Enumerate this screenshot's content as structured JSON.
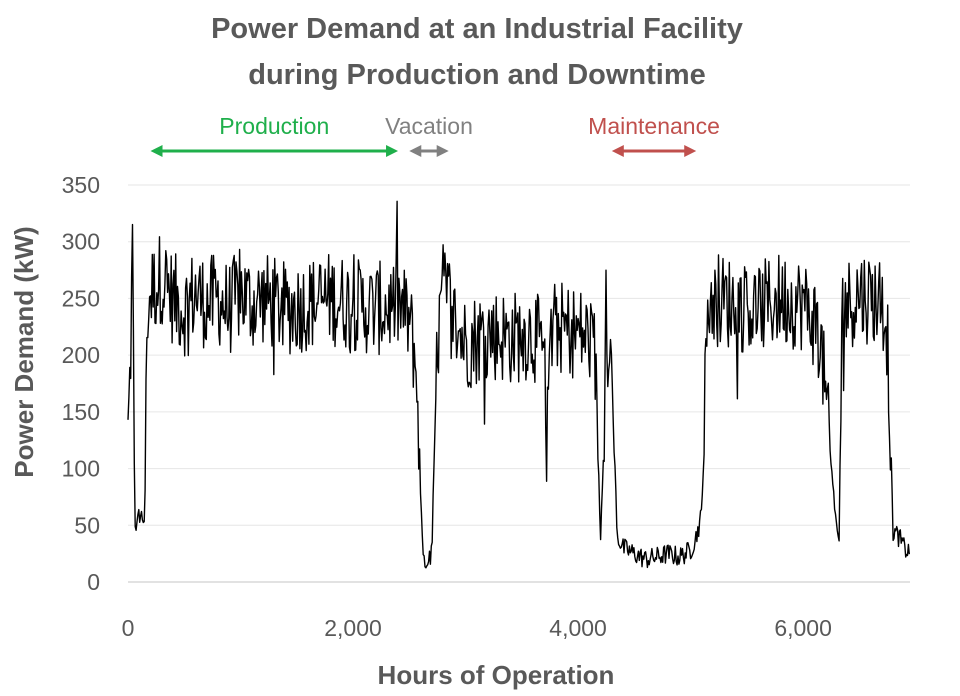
{
  "chart_data": {
    "type": "line",
    "title": [
      "Power Demand at an Industrial Facility",
      "during Production and Downtime"
    ],
    "xlabel": "Hours of Operation",
    "ylabel": "Power Demand (kW)",
    "xlim": [
      0,
      6950
    ],
    "ylim": [
      0,
      350
    ],
    "xticks": [
      0,
      2000,
      4000,
      6000
    ],
    "xtick_labels": [
      "0",
      "2,000",
      "4,000",
      "6,000"
    ],
    "yticks": [
      0,
      50,
      100,
      150,
      200,
      250,
      300,
      350
    ],
    "ytick_labels": [
      "0",
      "50",
      "100",
      "150",
      "200",
      "250",
      "300",
      "350"
    ],
    "grid": "horizontal",
    "series_color": "#000000",
    "series": [
      {
        "x": [
          0,
          20,
          40,
          60,
          80,
          100,
          150,
          170,
          200,
          300,
          400,
          500,
          600,
          700,
          800,
          900,
          1000,
          1100,
          1200,
          1400,
          1600,
          1800,
          2000,
          2200,
          2400,
          2500,
          2550,
          2580,
          2620,
          2650,
          2700,
          2750,
          2800,
          2850,
          2900,
          3000,
          3200,
          3400,
          3600,
          3700,
          3720,
          3740,
          3800,
          4000,
          4100,
          4150,
          4200,
          4250,
          4280,
          4300,
          4350,
          4400,
          4500,
          4600,
          4700,
          4800,
          4900,
          5000,
          5050,
          5100,
          5150,
          5200,
          5400,
          5600,
          5800,
          6000,
          6100,
          6150,
          6300,
          6320,
          6350,
          6400,
          6500,
          6600,
          6700,
          6750,
          6800,
          6850,
          6900,
          6950
        ],
        "y": [
          130,
          185,
          295,
          55,
          48,
          60,
          55,
          240,
          255,
          270,
          250,
          240,
          255,
          245,
          250,
          240,
          255,
          245,
          250,
          240,
          245,
          250,
          245,
          240,
          245,
          230,
          200,
          150,
          20,
          15,
          25,
          210,
          260,
          250,
          230,
          210,
          220,
          215,
          220,
          200,
          85,
          210,
          225,
          220,
          215,
          200,
          35,
          200,
          230,
          170,
          40,
          30,
          25,
          20,
          22,
          25,
          22,
          28,
          40,
          60,
          245,
          250,
          245,
          240,
          250,
          245,
          230,
          220,
          45,
          40,
          250,
          245,
          255,
          250,
          250,
          220,
          45,
          40,
          30,
          25
        ]
      }
    ],
    "annotations": [
      {
        "label": "Production",
        "color": "#1faf4b",
        "x_range": [
          200,
          2400
        ]
      },
      {
        "label": "Vacation",
        "color": "#808080",
        "x_range": [
          2500,
          2850
        ]
      },
      {
        "label": "Maintenance",
        "color": "#c0504d",
        "x_range": [
          4300,
          5050
        ]
      }
    ]
  }
}
